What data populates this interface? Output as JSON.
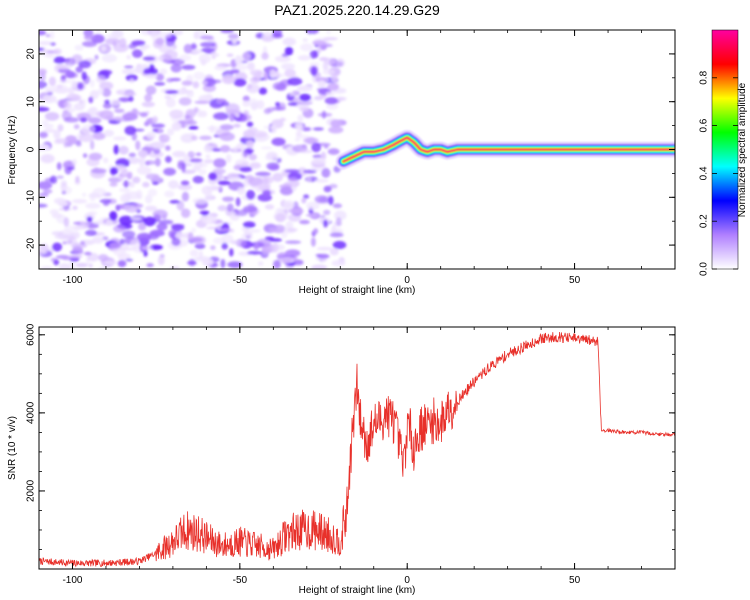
{
  "title": "PAZ1.2025.220.14.29.G29",
  "chart_data": [
    {
      "type": "heatmap",
      "xlabel": "Height of straight line (km)",
      "ylabel": "Frequency (Hz)",
      "xlim": [
        -110,
        80
      ],
      "ylim": [
        -25,
        25
      ],
      "xticks": [
        -100,
        -50,
        0,
        50
      ],
      "yticks": [
        -20,
        -10,
        0,
        10,
        20
      ],
      "grid": false,
      "noise_region_x": [
        -110,
        -19
      ],
      "ridge": {
        "x": [
          -19,
          -16,
          -13,
          -10,
          -7,
          -4,
          -2,
          0,
          2,
          4,
          6,
          8,
          10,
          12,
          15,
          20,
          30,
          40,
          50,
          60,
          70,
          80
        ],
        "y": [
          -2.5,
          -1.5,
          -0.5,
          -0.5,
          0.0,
          1.0,
          1.8,
          2.5,
          1.5,
          0.0,
          -0.5,
          0.0,
          0.0,
          -0.5,
          0.0,
          0.0,
          0.0,
          0.0,
          0.0,
          0.0,
          0.0,
          0.0
        ]
      },
      "colorbar": {
        "label": "Normalized spectral amplitude",
        "range": [
          0,
          1
        ],
        "ticks": [
          0.0,
          0.2,
          0.4,
          0.6,
          0.8
        ],
        "colors": [
          "#ffffff",
          "#b080ff",
          "#0000ff",
          "#00ffff",
          "#00ff00",
          "#ffff00",
          "#ff0000",
          "#ff00a0"
        ]
      }
    },
    {
      "type": "line",
      "xlabel": "Height of straight line (km)",
      "ylabel": "SNR (10 * v/v)",
      "xlim": [
        -110,
        80
      ],
      "ylim": [
        0,
        6200
      ],
      "xticks": [
        -100,
        -50,
        0,
        50
      ],
      "yticks": [
        2000,
        4000,
        6000
      ],
      "grid": false,
      "series": [
        {
          "color": "#e8302a",
          "x": [
            -110,
            -100,
            -90,
            -80,
            -75,
            -70,
            -66,
            -62,
            -58,
            -55,
            -50,
            -45,
            -40,
            -36,
            -32,
            -28,
            -24,
            -20,
            -18,
            -17,
            -16,
            -15,
            -14,
            -13,
            -12,
            -10,
            -8,
            -6,
            -4,
            -2,
            -1,
            0,
            1,
            2,
            4,
            6,
            8,
            10,
            12,
            15,
            20,
            25,
            30,
            35,
            40,
            45,
            50,
            55,
            57,
            58,
            60,
            65,
            70,
            75,
            80
          ],
          "y": [
            200,
            150,
            150,
            200,
            400,
            700,
            1000,
            900,
            700,
            600,
            700,
            600,
            500,
            900,
            1000,
            1000,
            900,
            700,
            1500,
            2800,
            3800,
            4700,
            3800,
            3500,
            3200,
            3700,
            3800,
            4000,
            3800,
            3000,
            2600,
            3700,
            3500,
            3100,
            3600,
            3700,
            3800,
            3700,
            4100,
            4300,
            4800,
            5200,
            5500,
            5700,
            5900,
            5950,
            5900,
            5850,
            5850,
            3550,
            3550,
            3500,
            3500,
            3450,
            3450
          ]
        }
      ]
    }
  ]
}
